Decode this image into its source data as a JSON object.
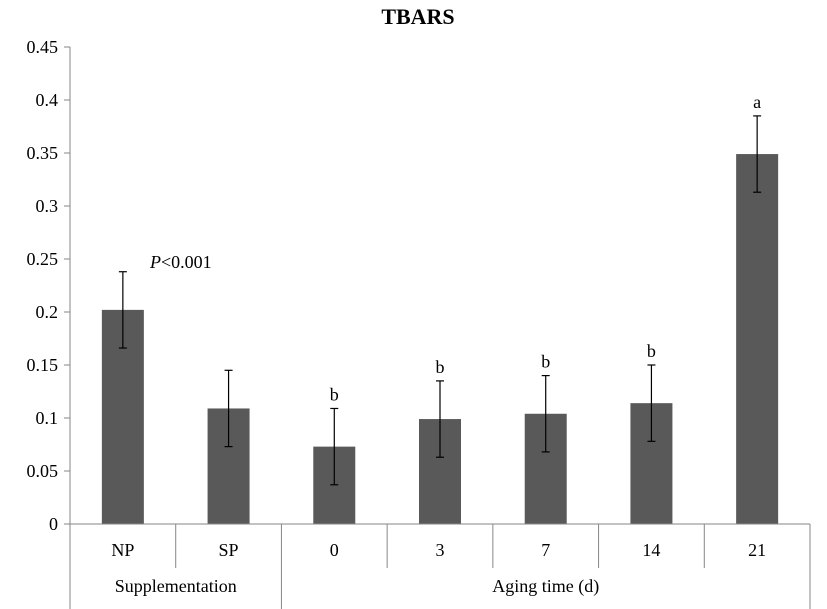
{
  "chart_data": {
    "type": "bar",
    "title": "TBARS",
    "xlabel": "",
    "ylabel": "",
    "ylim": [
      0,
      0.45
    ],
    "yticks": [
      "0",
      "0.05",
      "0.1",
      "0.15",
      "0.2",
      "0.25",
      "0.3",
      "0.35",
      "0.4",
      "0.45"
    ],
    "categories": [
      "NP",
      "SP",
      "0",
      "3",
      "7",
      "14",
      "21"
    ],
    "values": [
      0.202,
      0.109,
      0.073,
      0.099,
      0.104,
      0.114,
      0.349
    ],
    "errors": [
      0.036,
      0.036,
      0.036,
      0.036,
      0.036,
      0.036,
      0.036
    ],
    "bar_labels": [
      "",
      "",
      "b",
      "b",
      "b",
      "b",
      "a"
    ],
    "groups": [
      {
        "label": "Supplementation",
        "categories": [
          "NP",
          "SP"
        ]
      },
      {
        "label": "Aging time (d)",
        "categories": [
          "0",
          "3",
          "7",
          "14",
          "21"
        ]
      }
    ],
    "annotation": {
      "italic": "P",
      "text": "<0.001"
    },
    "bar_color": "#595959",
    "grid": false,
    "legend": "none"
  }
}
